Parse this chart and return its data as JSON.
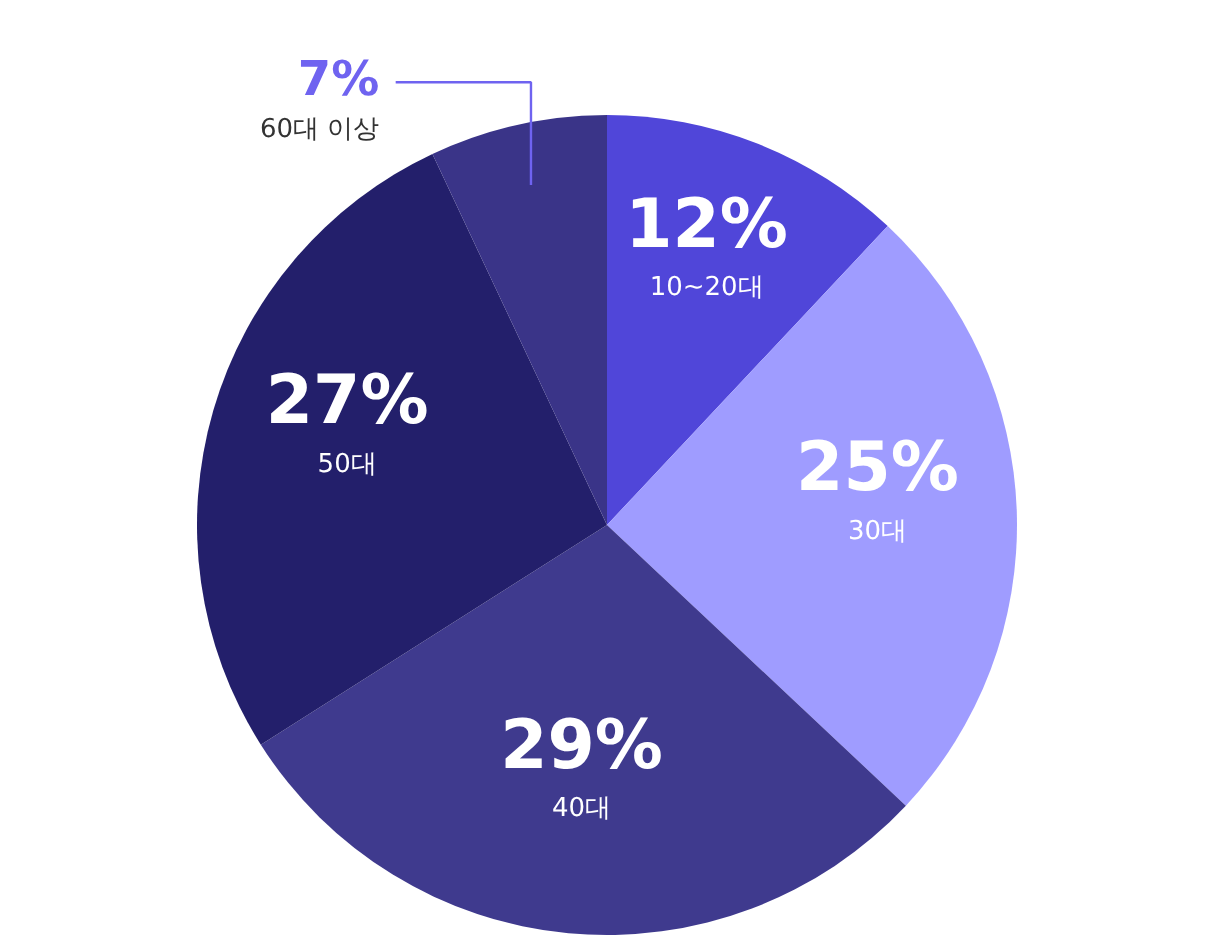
{
  "chart_data": {
    "type": "pie",
    "categories": [
      "10~20대",
      "30대",
      "40대",
      "50대",
      "60대 이상"
    ],
    "values": [
      12,
      25,
      29,
      27,
      7
    ],
    "value_labels": [
      "12%",
      "25%",
      "29%",
      "27%",
      "7%"
    ],
    "colors": [
      "#5046d9",
      "#9f9cff",
      "#3f3a8e",
      "#231f6b",
      "#3a3488"
    ]
  }
}
